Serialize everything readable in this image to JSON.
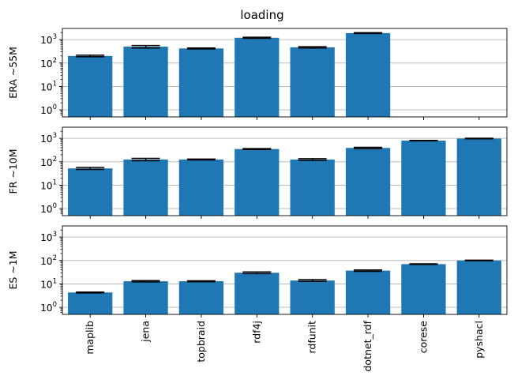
{
  "chart_data": {
    "type": "bar",
    "title": "loading",
    "yscale": "log",
    "ylim": [
      0.5,
      3000
    ],
    "grid": "y-major",
    "bar_color": "#1f77b4",
    "errorbar_color": "#000000",
    "categories": [
      "maplib",
      "jena",
      "topbraid",
      "rdf4j",
      "rdfunit",
      "dotnet_rdf",
      "corese",
      "pyshacl"
    ],
    "ytick_labels": [
      {
        "value": 1,
        "base": "10",
        "exp": "0"
      },
      {
        "value": 10,
        "base": "10",
        "exp": "1"
      },
      {
        "value": 100,
        "base": "10",
        "exp": "2"
      },
      {
        "value": 1000,
        "base": "10",
        "exp": "3"
      }
    ],
    "panels": [
      {
        "ylabel": "ERA ~55M",
        "values": [
          200,
          500,
          420,
          1200,
          470,
          1900,
          null,
          null
        ],
        "errors": [
          15,
          60,
          20,
          60,
          30,
          80,
          null,
          null
        ]
      },
      {
        "ylabel": "FR ~10M",
        "values": [
          52,
          125,
          125,
          350,
          125,
          390,
          800,
          980
        ],
        "errors": [
          5,
          15,
          5,
          15,
          10,
          25,
          20,
          30
        ]
      },
      {
        "ylabel": "ES ~1M",
        "values": [
          4.3,
          13,
          13,
          30,
          14,
          37,
          70,
          100
        ],
        "errors": [
          0.2,
          0.8,
          0.6,
          2.5,
          1.2,
          2.5,
          2,
          3
        ]
      }
    ]
  }
}
